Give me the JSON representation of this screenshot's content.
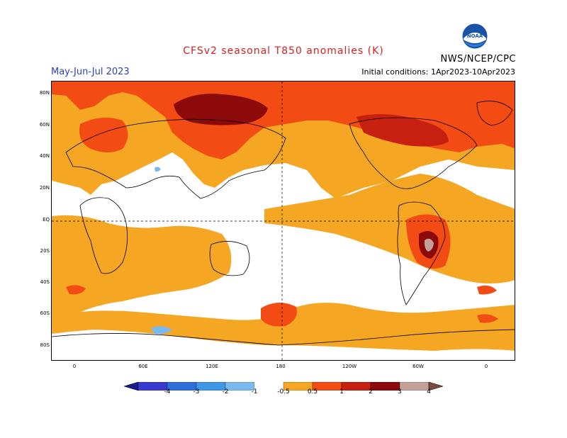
{
  "header": {
    "title": "CFSv2 seasonal T850 anomalies (K)",
    "period": "May-Jun-Jul 2023",
    "init": "Initial conditions: 1Apr2023-10Apr2023",
    "agency": "NWS/NCEP/CPC",
    "logo_text": "NOAA"
  },
  "axes": {
    "y_labels": [
      "80N",
      "60N",
      "40N",
      "20N",
      "EQ",
      "20S",
      "40S",
      "60S",
      "80S"
    ],
    "x_labels": [
      "0",
      "60E",
      "120E",
      "180",
      "120W",
      "60W",
      "0"
    ]
  },
  "colorbar": {
    "labels": [
      "-4",
      "-3",
      "-2",
      "-1",
      "-0.5",
      "0.5",
      "1",
      "2",
      "3",
      "4"
    ],
    "colors": [
      "#1d1a8a",
      "#3a3ad0",
      "#2d6fd8",
      "#3f98e6",
      "#7ab8f0",
      "#ffffff",
      "#f5a623",
      "#f24c14",
      "#c82010",
      "#8c0a0a",
      "#c4a098",
      "#7a4a3a"
    ],
    "units": "K"
  },
  "map_colors": {
    "anom_0_5_1": "#f5a623",
    "anom_1_2": "#f24c14",
    "anom_2_3": "#c82010",
    "anom_3_4": "#8c0a0a",
    "anom_gt_4": "#c4a098",
    "anom_neg": "#7ab8f0",
    "coast": "#000000"
  }
}
